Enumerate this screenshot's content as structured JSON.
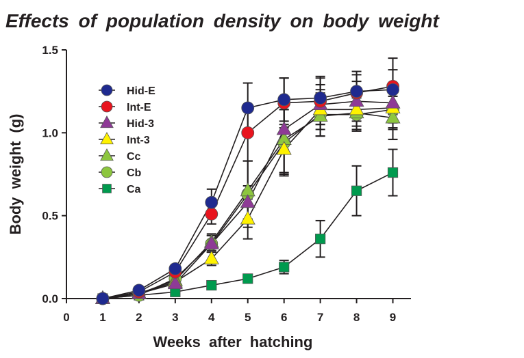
{
  "chart_data": {
    "type": "line",
    "title": "Effects of population density on body weight",
    "xlabel": "Weeks after hatching",
    "ylabel": "Body weight (g)",
    "xlim": [
      0,
      9.5
    ],
    "ylim": [
      0,
      1.5
    ],
    "xticks": [
      0,
      1,
      2,
      3,
      4,
      5,
      6,
      7,
      8,
      9
    ],
    "xtick_labels": [
      "0",
      "1",
      "2",
      "3",
      "4",
      "5",
      "6",
      "7",
      "8",
      "9"
    ],
    "yticks": [
      0.0,
      0.5,
      1.0,
      1.5
    ],
    "ytick_labels": [
      "0.0",
      "0.5",
      "1.0",
      "1.5"
    ],
    "grid": false,
    "legend_position": "top-left",
    "x": [
      1,
      2,
      3,
      4,
      5,
      6,
      7,
      8,
      9
    ],
    "series": [
      {
        "name": "Hid-E",
        "marker": "circle",
        "color": "#1f2a8f",
        "values": [
          0.0,
          0.05,
          0.18,
          0.58,
          1.15,
          1.2,
          1.21,
          1.25,
          1.26
        ],
        "errors": [
          0.0,
          0.01,
          0.02,
          0.08,
          0.15,
          0.13,
          0.13,
          0.12,
          0.12
        ]
      },
      {
        "name": "Int-E",
        "marker": "circle",
        "color": "#e8141e",
        "values": [
          0.0,
          0.04,
          0.16,
          0.51,
          1.0,
          1.18,
          1.19,
          1.24,
          1.28
        ],
        "errors": [
          0.0,
          0.01,
          0.02,
          0.06,
          0.17,
          0.15,
          0.14,
          0.11,
          0.17
        ]
      },
      {
        "name": "Hid-3",
        "marker": "triangle",
        "color": "#8e3a96",
        "values": [
          0.0,
          0.03,
          0.09,
          0.33,
          0.58,
          1.02,
          1.17,
          1.19,
          1.18
        ],
        "errors": [
          0.0,
          0.01,
          0.02,
          0.05,
          0.1,
          0.12,
          0.12,
          0.12,
          0.12
        ]
      },
      {
        "name": "Int-3",
        "marker": "triangle",
        "color": "#fff200",
        "values": [
          0.0,
          0.03,
          0.1,
          0.24,
          0.48,
          0.9,
          1.14,
          1.14,
          1.15
        ],
        "errors": [
          0.0,
          0.01,
          0.02,
          0.04,
          0.12,
          0.15,
          0.12,
          0.1,
          0.12
        ]
      },
      {
        "name": "Cc",
        "marker": "triangle",
        "color": "#8dc63f",
        "values": [
          0.0,
          0.03,
          0.11,
          0.34,
          0.65,
          0.96,
          1.1,
          1.12,
          1.09
        ],
        "errors": [
          0.0,
          0.01,
          0.02,
          0.05,
          0.18,
          0.2,
          0.12,
          0.1,
          0.13
        ]
      },
      {
        "name": "Cb",
        "marker": "circle",
        "color": "#8dc63f",
        "values": [
          0.0,
          0.02,
          0.12,
          0.33,
          0.63,
          0.94,
          1.11,
          1.11,
          1.14
        ],
        "errors": [
          0.0,
          0.01,
          0.02,
          0.05,
          0.2,
          0.2,
          0.13,
          0.1,
          0.12
        ]
      },
      {
        "name": "Ca",
        "marker": "square",
        "color": "#009a4e",
        "values": [
          0.0,
          0.02,
          0.04,
          0.08,
          0.12,
          0.19,
          0.36,
          0.65,
          0.76
        ],
        "errors": [
          0.0,
          0.01,
          0.01,
          0.02,
          0.02,
          0.04,
          0.11,
          0.15,
          0.14
        ]
      }
    ]
  }
}
